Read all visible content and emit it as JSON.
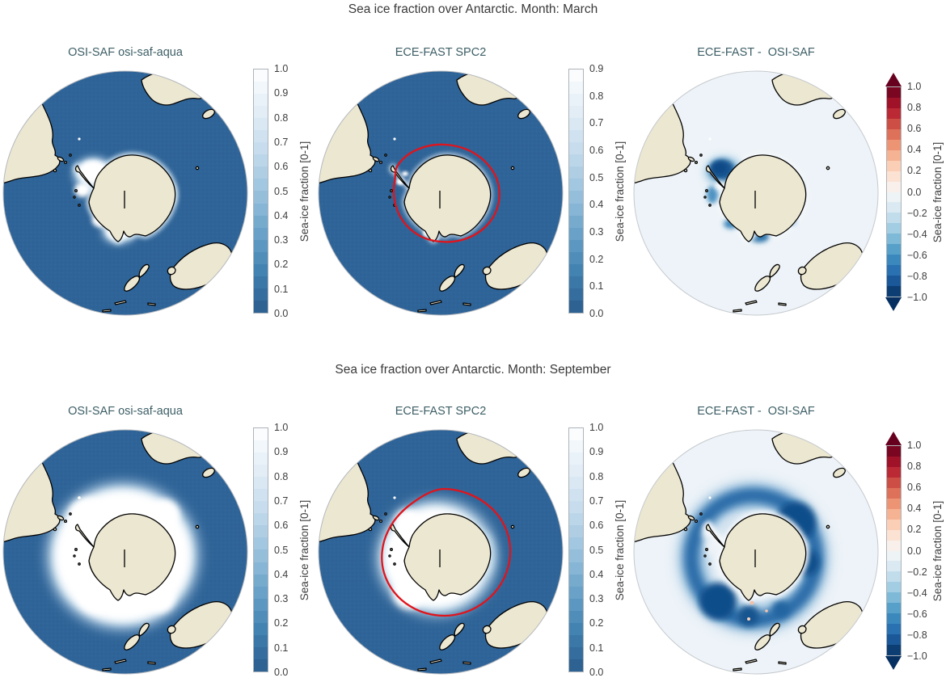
{
  "rows": [
    {
      "suptitle": "Sea ice fraction over Antarctic. Month: March",
      "panels": [
        {
          "title": "OSI-SAF osi-saf-aqua"
        },
        {
          "title": "ECE-FAST SPC2"
        },
        {
          "title": "ECE-FAST -  OSI-SAF"
        }
      ]
    },
    {
      "suptitle": "Sea ice fraction over Antarctic. Month: September",
      "panels": [
        {
          "title": "OSI-SAF osi-saf-aqua"
        },
        {
          "title": "ECE-FAST SPC2"
        },
        {
          "title": "ECE-FAST -  OSI-SAF"
        }
      ]
    }
  ],
  "colorbars": {
    "label": "Sea-ice fraction [0-1]",
    "blues_anchors": [
      "#2a5c8e",
      "#4181b1",
      "#6ba3c9",
      "#9cc3de",
      "#c6dcec",
      "#e3eef7",
      "#ffffff"
    ],
    "rdbu_anchors": [
      "#053061",
      "#2166ac",
      "#4393c3",
      "#92c5de",
      "#d1e5f0",
      "#f7f7f7",
      "#fddbc7",
      "#f4a582",
      "#d6604d",
      "#b2182b",
      "#67001f"
    ],
    "ticks_0_1": [
      "1.0",
      "0.9",
      "0.8",
      "0.7",
      "0.6",
      "0.5",
      "0.4",
      "0.3",
      "0.2",
      "0.1",
      "0.0"
    ],
    "ticks_0_09": [
      "0.9",
      "0.8",
      "0.7",
      "0.6",
      "0.5",
      "0.4",
      "0.3",
      "0.2",
      "0.1",
      "0.0"
    ],
    "ticks_diff": [
      "1.0",
      "0.8",
      "0.6",
      "0.4",
      "0.2",
      "0.0",
      "−0.2",
      "−0.4",
      "−0.6",
      "−0.8",
      "−1.0"
    ]
  },
  "colors": {
    "ocean": "#2f6498",
    "land": "#ece7d1",
    "coastline": "#000000",
    "diff_background": "#edf3f8",
    "ice": "#ffffff",
    "ice_edge_contour": "#e0141c",
    "panel_title": "#3d5f66",
    "suptitle": "#3a3a3a"
  },
  "chart_data": [
    {
      "type": "heatmap",
      "title": "Sea ice fraction over Antarctic. Month: March",
      "projection": "south-polar orthographic globe",
      "panels": [
        {
          "name": "OSI-SAF osi-saf-aqua",
          "field": "observed sea-ice fraction",
          "colormap": "blues, dark blue = 0 (open ocean) to white = 1 (full ice)",
          "vmin": 0.0,
          "vmax": 1.0,
          "colorbar_ticks": [
            1.0,
            0.9,
            0.8,
            0.7,
            0.6,
            0.5,
            0.4,
            0.3,
            0.2,
            0.1,
            0.0
          ],
          "colorbar_label": "Sea-ice fraction [0-1]",
          "notable_features": "summer minimum: compact white ice patches in Weddell Sea, Bellingshausen/Amundsen Seas and Ross Sea close to the coast"
        },
        {
          "name": "ECE-FAST SPC2",
          "field": "model sea-ice fraction",
          "colormap": "blues, dark blue = 0 to white = max",
          "vmin": 0.0,
          "vmax": 0.9,
          "colorbar_ticks": [
            0.9,
            0.8,
            0.7,
            0.6,
            0.5,
            0.4,
            0.3,
            0.2,
            0.1,
            0.0
          ],
          "colorbar_label": "Sea-ice fraction [0-1]",
          "overlay": "red contour marking the OSI-SAF observed ice edge",
          "notable_features": "almost no modelled ice; tiny white patches near the Antarctic Peninsula and Ross Sea"
        },
        {
          "name": "ECE-FAST -  OSI-SAF",
          "field": "difference (model minus observations)",
          "colormap": "red-blue diverging (RdBu), blue = negative, red = positive",
          "vmin": -1.0,
          "vmax": 1.0,
          "colorbar_ticks": [
            1.0,
            0.8,
            0.6,
            0.4,
            0.2,
            0.0,
            -0.2,
            -0.4,
            -0.6,
            -0.8,
            -1.0
          ],
          "colorbar_label": "Sea-ice fraction [0-1]",
          "notable_features": "strong negative (dark blue) difference in the Weddell Sea, smaller negative patches along Bellingshausen/Amundsen and Ross Seas; background near zero"
        }
      ]
    },
    {
      "type": "heatmap",
      "title": "Sea ice fraction over Antarctic. Month: September",
      "projection": "south-polar orthographic globe",
      "panels": [
        {
          "name": "OSI-SAF osi-saf-aqua",
          "field": "observed sea-ice fraction",
          "colormap": "blues, dark blue = 0 (open ocean) to white = 1 (full ice)",
          "vmin": 0.0,
          "vmax": 1.0,
          "colorbar_ticks": [
            1.0,
            0.9,
            0.8,
            0.7,
            0.6,
            0.5,
            0.4,
            0.3,
            0.2,
            0.1,
            0.0
          ],
          "colorbar_label": "Sea-ice fraction [0-1]",
          "notable_features": "winter maximum: broad continuous white ice ring completely surrounding Antarctica"
        },
        {
          "name": "ECE-FAST SPC2",
          "field": "model sea-ice fraction",
          "colormap": "blues, dark blue = 0 to white = 1",
          "vmin": 0.0,
          "vmax": 1.0,
          "colorbar_ticks": [
            1.0,
            0.9,
            0.8,
            0.7,
            0.6,
            0.5,
            0.4,
            0.3,
            0.2,
            0.1,
            0.0
          ],
          "colorbar_label": "Sea-ice fraction [0-1]",
          "overlay": "red contour marking the OSI-SAF observed ice edge, lying well outside the modelled ice",
          "notable_features": "modelled ice ring smaller than observed; thin/patchy ice east of the continent"
        },
        {
          "name": "ECE-FAST -  OSI-SAF",
          "field": "difference (model minus observations)",
          "colormap": "red-blue diverging (RdBu), blue = negative, red = positive",
          "vmin": -1.0,
          "vmax": 1.0,
          "colorbar_ticks": [
            1.0,
            0.8,
            0.6,
            0.4,
            0.2,
            0.0,
            -0.2,
            -0.4,
            -0.6,
            -0.8,
            -1.0
          ],
          "colorbar_label": "Sea-ice fraction [0-1]",
          "notable_features": "broad dark-blue negative ring around the whole continent (model underestimates ice extent), gaps near the Antarctic Peninsula; few faint pink specks near Ross Sea"
        }
      ]
    }
  ]
}
